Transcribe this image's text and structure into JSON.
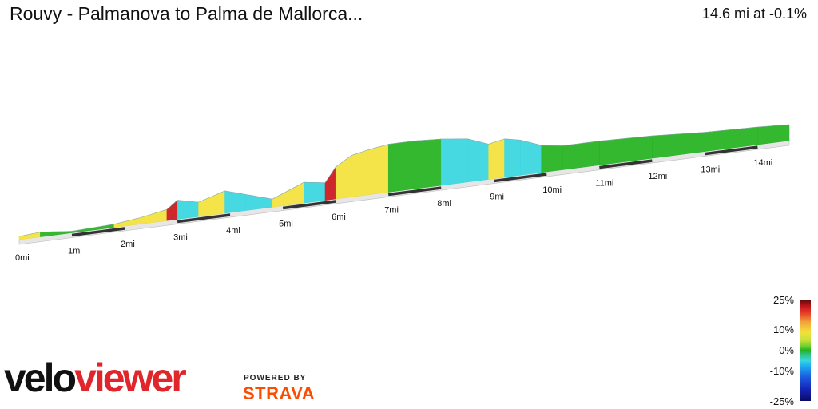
{
  "header": {
    "title": "Rouvy - Palmanova to Palma de Mallorca...",
    "summary": "14.6 mi at -0.1%"
  },
  "legend": {
    "labels": [
      "25%",
      "10%",
      "0%",
      "-10%",
      "-25%"
    ],
    "colors": {
      "steep_up": "#c9161b",
      "up": "#f4e13a",
      "flat": "#22b21f",
      "down": "#38d6e0",
      "steep_down": "#0a0a66"
    }
  },
  "branding": {
    "logo_part1": "velo",
    "logo_part2": "viewer",
    "powered_by": "POWERED BY",
    "strava": "STRAVA"
  },
  "chart_data": {
    "type": "area",
    "xlabel": "",
    "ylabel": "",
    "x_unit": "mi",
    "xlim": [
      0,
      14.6
    ],
    "tick_labels": [
      "0mi",
      "1mi",
      "2mi",
      "3mi",
      "4mi",
      "5mi",
      "6mi",
      "7mi",
      "8mi",
      "9mi",
      "10mi",
      "11mi",
      "12mi",
      "13mi",
      "14mi"
    ],
    "profile": {
      "distance_mi": [
        0,
        0.4,
        1.0,
        1.8,
        2.3,
        2.8,
        3.0,
        3.4,
        3.9,
        4.3,
        4.8,
        5.1,
        5.4,
        5.8,
        6.0,
        6.3,
        6.6,
        7.0,
        7.5,
        8.0,
        8.5,
        8.9,
        9.2,
        9.5,
        9.9,
        10.3,
        11,
        12,
        13,
        14,
        14.6
      ],
      "relative_height": [
        2,
        3,
        1,
        2,
        4,
        7,
        12,
        9,
        14,
        10,
        5,
        9,
        13,
        11,
        20,
        26,
        28,
        30,
        30,
        29,
        27,
        22,
        24,
        22,
        17,
        15,
        15,
        14,
        12,
        11,
        10
      ],
      "grade_class": [
        "up",
        "flat",
        "flat",
        "up",
        "up",
        "steep_up",
        "down",
        "up",
        "down",
        "down",
        "up",
        "up",
        "down",
        "steep_up",
        "up",
        "up",
        "up",
        "flat",
        "flat",
        "down",
        "down",
        "up",
        "down",
        "down",
        "flat",
        "flat",
        "flat",
        "flat",
        "flat",
        "flat"
      ]
    }
  }
}
